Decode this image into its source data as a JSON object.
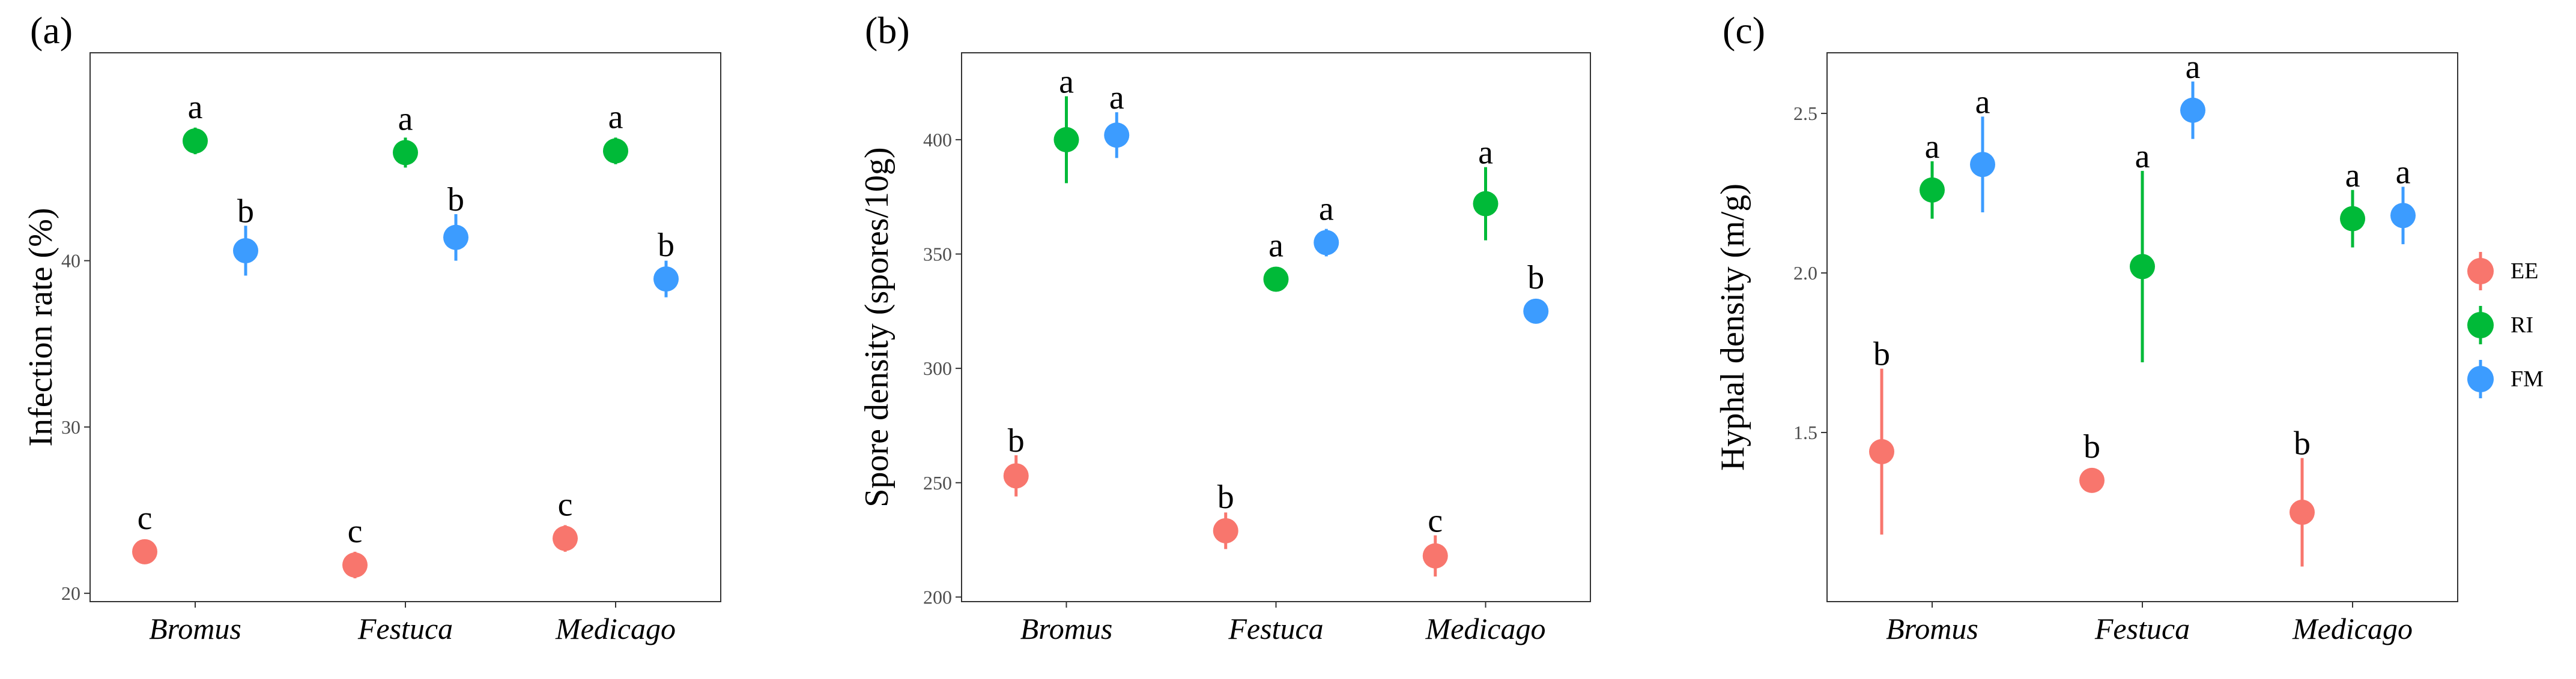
{
  "legend": {
    "items": [
      {
        "label": "EE",
        "color": "#F8766D"
      },
      {
        "label": "RI",
        "color": "#00BA38"
      },
      {
        "label": "FM",
        "color": "#3C9CFF"
      }
    ]
  },
  "chart_data": [
    {
      "type": "scatter",
      "panel_label": "(a)",
      "ylabel": "Infection rate (%)",
      "categories": [
        "Bromus",
        "Festuca",
        "Medicago"
      ],
      "ylim": [
        19.5,
        52.5
      ],
      "yticks": [
        20,
        30,
        40
      ],
      "grid": false,
      "series": [
        {
          "name": "EE",
          "color": "#F8766D",
          "values": [
            22.5,
            21.7,
            23.3
          ],
          "lower": [
            21.9,
            20.9,
            22.5
          ],
          "upper": [
            23.1,
            22.5,
            24.1
          ],
          "letters": [
            "c",
            "c",
            "c"
          ]
        },
        {
          "name": "RI",
          "color": "#00BA38",
          "values": [
            47.2,
            46.5,
            46.6
          ],
          "lower": [
            46.4,
            45.6,
            45.8
          ],
          "upper": [
            48.0,
            47.4,
            47.4
          ],
          "letters": [
            "a",
            "a",
            "a"
          ]
        },
        {
          "name": "FM",
          "color": "#3C9CFF",
          "values": [
            40.6,
            41.4,
            38.9
          ],
          "lower": [
            39.1,
            40.0,
            37.8
          ],
          "upper": [
            42.1,
            42.8,
            40.0
          ],
          "letters": [
            "b",
            "b",
            "b"
          ]
        }
      ]
    },
    {
      "type": "scatter",
      "panel_label": "(b)",
      "ylabel": "Spore density (spores/10g)",
      "categories": [
        "Bromus",
        "Festuca",
        "Medicago"
      ],
      "ylim": [
        198,
        438
      ],
      "yticks": [
        200,
        250,
        300,
        350,
        400
      ],
      "grid": false,
      "series": [
        {
          "name": "EE",
          "color": "#F8766D",
          "values": [
            253,
            229,
            218
          ],
          "lower": [
            244,
            221,
            209
          ],
          "upper": [
            262,
            237,
            227
          ],
          "letters": [
            "b",
            "b",
            "c"
          ]
        },
        {
          "name": "RI",
          "color": "#00BA38",
          "values": [
            400,
            339,
            372
          ],
          "lower": [
            381,
            334,
            356
          ],
          "upper": [
            419,
            344,
            388
          ],
          "letters": [
            "a",
            "a",
            "a"
          ]
        },
        {
          "name": "FM",
          "color": "#3C9CFF",
          "values": [
            402,
            355,
            325
          ],
          "lower": [
            392,
            349,
            321
          ],
          "upper": [
            412,
            361,
            329
          ],
          "letters": [
            "a",
            "a",
            "b"
          ]
        }
      ]
    },
    {
      "type": "scatter",
      "panel_label": "(c)",
      "ylabel": "Hyphal density (m/g)",
      "categories": [
        "Bromus",
        "Festuca",
        "Medicago"
      ],
      "ylim": [
        0.97,
        2.69
      ],
      "yticks": [
        1.5,
        2.0,
        2.5
      ],
      "grid": false,
      "series": [
        {
          "name": "EE",
          "color": "#F8766D",
          "values": [
            1.44,
            1.35,
            1.25
          ],
          "lower": [
            1.18,
            1.33,
            1.08
          ],
          "upper": [
            1.7,
            1.37,
            1.42
          ],
          "letters": [
            "b",
            "b",
            "b"
          ]
        },
        {
          "name": "RI",
          "color": "#00BA38",
          "values": [
            2.26,
            2.02,
            2.17
          ],
          "lower": [
            2.17,
            1.72,
            2.08
          ],
          "upper": [
            2.35,
            2.32,
            2.26
          ],
          "letters": [
            "a",
            "a",
            "a"
          ]
        },
        {
          "name": "FM",
          "color": "#3C9CFF",
          "values": [
            2.34,
            2.51,
            2.18
          ],
          "lower": [
            2.19,
            2.42,
            2.09
          ],
          "upper": [
            2.49,
            2.6,
            2.27
          ],
          "letters": [
            "a",
            "a",
            "a"
          ]
        }
      ]
    }
  ]
}
